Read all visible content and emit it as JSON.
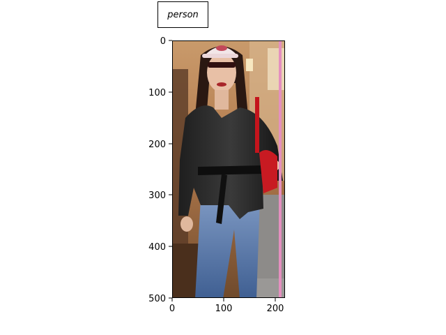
{
  "annotation": {
    "label": "person",
    "line_color": "#e58fbf"
  },
  "axes": {
    "y_ticks": [
      "0",
      "100",
      "200",
      "300",
      "400",
      "500"
    ],
    "x_ticks": [
      "0",
      "100",
      "200"
    ]
  },
  "image": {
    "subject_icon": "person-standing-photo"
  }
}
